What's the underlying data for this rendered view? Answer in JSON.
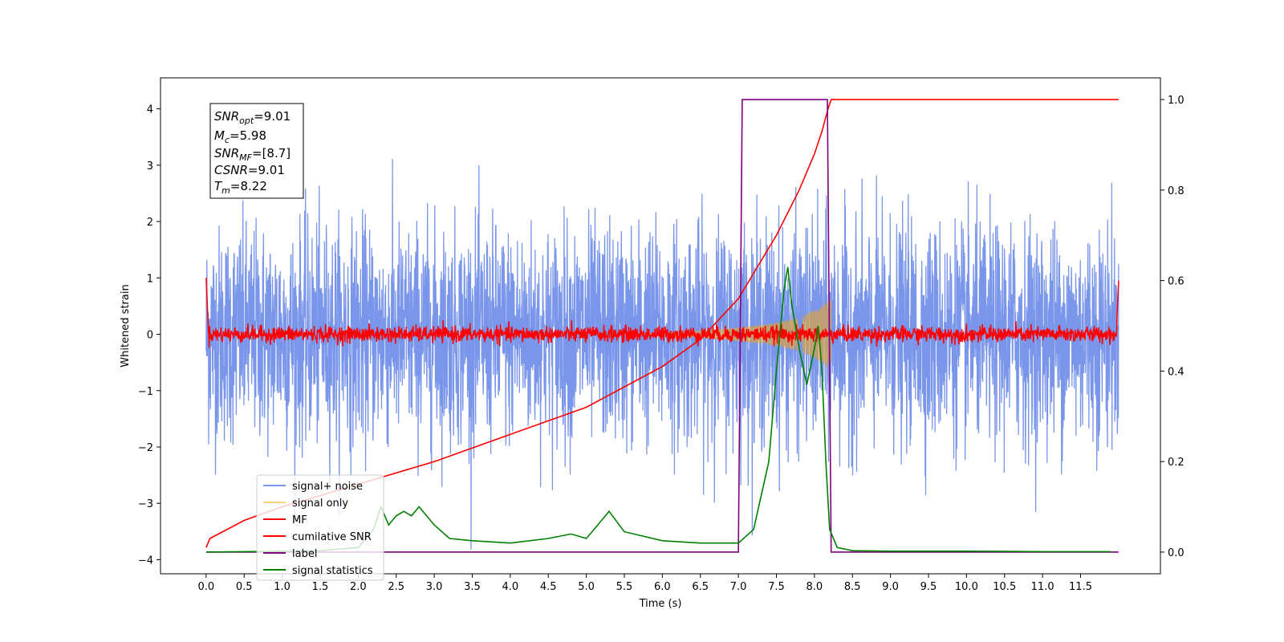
{
  "chart_data": {
    "type": "line",
    "xlabel": "Time (s)",
    "ylabel": "Whitened strain",
    "xlim": [
      -0.6,
      12.55
    ],
    "ylim": [
      -4.25,
      4.55
    ],
    "y2lim": [
      -0.048,
      1.048
    ],
    "grid": false,
    "legend_position": "lower-left",
    "x_ticks": [
      "0.0",
      "0.5",
      "1.0",
      "1.5",
      "2.0",
      "2.5",
      "3.0",
      "3.5",
      "4.0",
      "4.5",
      "5.0",
      "5.5",
      "6.0",
      "6.5",
      "7.0",
      "7.5",
      "8.0",
      "8.5",
      "9.0",
      "9.5",
      "10.0",
      "10.5",
      "11.0",
      "11.5"
    ],
    "y_ticks": [
      "4",
      "3",
      "2",
      "1",
      "0",
      "−1",
      "−2",
      "−3",
      "−4"
    ],
    "y2_ticks": [
      "1.0",
      "0.8",
      "0.6",
      "0.4",
      "0.2",
      "0.0"
    ],
    "info_box": {
      "snr_opt": {
        "base": "SNR",
        "sub": "opt",
        "value": "=9.01"
      },
      "mc": {
        "base": "M",
        "sub": "c",
        "value": "=5.98"
      },
      "snr_mf": {
        "base": "SNR",
        "sub": "MF",
        "value": "=[8.7]"
      },
      "csnr": {
        "base": "CSNR",
        "sub": "",
        "value": "=9.01"
      },
      "tm": {
        "base": "T",
        "sub": "m",
        "value": "=8.22"
      }
    },
    "series": [
      {
        "name": "signal+ noise",
        "color": "#4169e1",
        "axis": "left",
        "note": "whitened noise, ~N(0,1), spans 0–12 s"
      },
      {
        "name": "signal only",
        "color": "#ffa500",
        "axis": "left",
        "envelope": {
          "t": [
            6.0,
            6.5,
            7.0,
            7.5,
            7.8,
            8.0,
            8.1,
            8.18,
            8.22
          ],
          "amp": [
            0.02,
            0.06,
            0.12,
            0.2,
            0.3,
            0.42,
            0.5,
            0.6,
            0.65
          ]
        }
      },
      {
        "name": "MF",
        "color": "#ff0000",
        "axis": "left",
        "note": "matched-filter output, ~0 ± 0.1"
      },
      {
        "name": "cumilative SNR",
        "color": "#ff0000",
        "axis": "right",
        "x": [
          0.0,
          0.05,
          0.5,
          1.0,
          2.0,
          3.0,
          4.0,
          5.0,
          6.0,
          6.5,
          7.0,
          7.5,
          7.8,
          8.0,
          8.1,
          8.18,
          8.22,
          12.0
        ],
        "values": [
          0.01,
          0.03,
          0.07,
          0.1,
          0.15,
          0.2,
          0.26,
          0.32,
          0.41,
          0.47,
          0.56,
          0.7,
          0.8,
          0.88,
          0.93,
          0.98,
          1.0,
          1.0
        ]
      },
      {
        "name": "label",
        "color": "#800080",
        "axis": "right",
        "x": [
          0.0,
          7.0,
          7.05,
          8.17,
          8.22,
          12.0
        ],
        "values": [
          0.0,
          0.0,
          1.0,
          1.0,
          0.0,
          0.0
        ]
      },
      {
        "name": "signal statistics",
        "color": "#008000",
        "axis": "right",
        "x": [
          0.0,
          0.5,
          1.0,
          1.5,
          2.0,
          2.2,
          2.3,
          2.4,
          2.5,
          2.6,
          2.7,
          2.8,
          2.9,
          3.0,
          3.2,
          3.5,
          4.0,
          4.5,
          4.8,
          5.0,
          5.2,
          5.3,
          5.5,
          6.0,
          6.5,
          7.0,
          7.2,
          7.4,
          7.5,
          7.6,
          7.65,
          7.7,
          7.8,
          7.9,
          8.0,
          8.05,
          8.1,
          8.15,
          8.2,
          8.3,
          8.5,
          9.0,
          10.0,
          11.0,
          11.9
        ],
        "values": [
          0.0,
          0.001,
          0.002,
          0.003,
          0.01,
          0.05,
          0.1,
          0.06,
          0.08,
          0.09,
          0.08,
          0.1,
          0.08,
          0.06,
          0.03,
          0.025,
          0.02,
          0.03,
          0.04,
          0.03,
          0.07,
          0.09,
          0.045,
          0.025,
          0.02,
          0.02,
          0.05,
          0.2,
          0.4,
          0.58,
          0.63,
          0.55,
          0.45,
          0.37,
          0.45,
          0.5,
          0.4,
          0.2,
          0.05,
          0.01,
          0.003,
          0.002,
          0.002,
          0.001,
          0.001
        ]
      }
    ]
  }
}
